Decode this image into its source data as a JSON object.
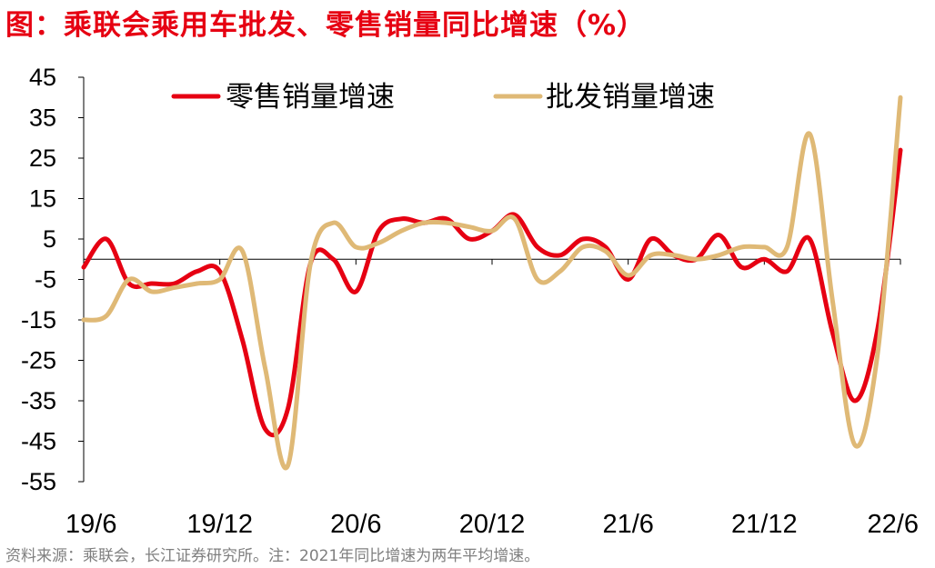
{
  "title": "图：乘联会乘用车批发、零售销量同比增速（%）",
  "source": "资料来源：乘联会，长江证券研究所。注：2021年同比增速为两年平均增速。",
  "colors": {
    "retail": "#e60012",
    "wholesale": "#dfb976",
    "title": "#e60012",
    "axis": "#000000"
  },
  "chart_data": {
    "type": "line",
    "title": "图：乘联会乘用车批发、零售销量同比增速（%）",
    "xlabel": "",
    "ylabel": "",
    "ylim": [
      -55,
      45
    ],
    "yticks": [
      45,
      35,
      25,
      15,
      5,
      -5,
      -15,
      -25,
      -35,
      -45,
      -55
    ],
    "x": [
      "19/6",
      "19/7",
      "19/8",
      "19/9",
      "19/10",
      "19/11",
      "19/12",
      "20/1",
      "20/2",
      "20/3",
      "20/4",
      "20/5",
      "20/6",
      "20/7",
      "20/8",
      "20/9",
      "20/10",
      "20/11",
      "20/12",
      "21/1",
      "21/2",
      "21/3",
      "21/4",
      "21/5",
      "21/6",
      "21/7",
      "21/8",
      "21/9",
      "21/10",
      "21/11",
      "21/12",
      "22/1",
      "22/2",
      "22/3",
      "22/4",
      "22/5",
      "22/6"
    ],
    "xtick_labels": [
      "19/6",
      "19/12",
      "20/6",
      "20/12",
      "21/6",
      "21/12",
      "22/6"
    ],
    "grid": false,
    "legend_position": "top",
    "series": [
      {
        "name": "零售销量增速",
        "values": [
          -2,
          5,
          -6,
          -6,
          -6,
          -3,
          -3,
          -20,
          -42,
          -37,
          -1,
          0,
          -8,
          7,
          10,
          9,
          10,
          5,
          7,
          11,
          3,
          1,
          5,
          3,
          -5,
          5,
          1,
          0,
          6,
          -2,
          0,
          -3,
          5,
          -18,
          -35,
          -17,
          27
        ]
      },
      {
        "name": "批发销量增速",
        "values": [
          -15,
          -14,
          -5,
          -8,
          -7,
          -6,
          -5,
          2,
          -27,
          -51,
          -1,
          9,
          3,
          4,
          7,
          9,
          9,
          8,
          7,
          10,
          -5,
          -3,
          3,
          2,
          -4,
          1,
          1,
          0,
          1,
          3,
          3,
          3,
          31,
          -10,
          -46,
          -23,
          40
        ]
      }
    ]
  }
}
